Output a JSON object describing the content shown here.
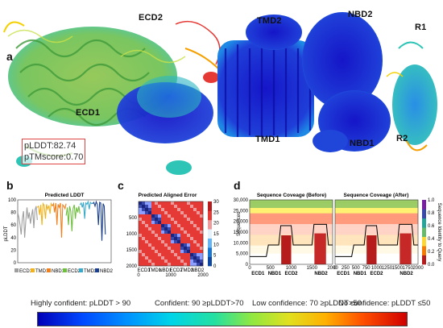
{
  "figure": {
    "panels": {
      "a": "a",
      "b": "b",
      "c": "c",
      "d": "d"
    },
    "structure_labels": {
      "ecd2": "ECD2",
      "tmd2": "TMD2",
      "nbd2": "NBD2",
      "r1": "R1",
      "ecd1": "ECD1",
      "tmd1": "TMD1",
      "nbd1": "NBD1",
      "r2": "R2"
    },
    "metrics": {
      "plddt": "pLDDT:82.74",
      "ptm": "pTMscore:0.70"
    },
    "legend": {
      "high": "Highly confident: pLDDT > 90",
      "confident": "Confident: 90 ≥pLDDT>70",
      "low": "Low confidence: 70 ≥pLDDT>50",
      "none": "No confidence: pLDDT ≤50"
    },
    "colors": {
      "very_high": "#1c1ccf",
      "high": "#1e88e5",
      "mid": "#2ec4b6",
      "low": "#8bc34a",
      "very_low": "#f5d000",
      "red": "#e53935"
    }
  },
  "chart_data": [
    {
      "type": "line",
      "title": "Predicted LDDT",
      "ylabel": "pLDDT",
      "ylim": [
        0,
        100
      ],
      "yticks": [
        "0",
        "20",
        "40",
        "60",
        "80",
        "100"
      ],
      "series": [
        {
          "name": "ECD1",
          "color": "#9e9e9e",
          "values": [
            80,
            72,
            60,
            45,
            70,
            82,
            40,
            66,
            88,
            70,
            80,
            62,
            75,
            85,
            55,
            84,
            90,
            68
          ]
        },
        {
          "name": "TMD1",
          "color": "#f2b21b",
          "values": [
            88,
            90,
            76,
            92,
            60,
            94,
            91,
            70,
            93,
            85,
            91,
            78,
            94,
            90
          ]
        },
        {
          "name": "NBD1",
          "color": "#f07f1e",
          "values": [
            90,
            94,
            80,
            95,
            60,
            93,
            88,
            95,
            40,
            92,
            90,
            86,
            94
          ]
        },
        {
          "name": "ECD2",
          "color": "#6fbf3f",
          "values": [
            75,
            88,
            60,
            90,
            82,
            50,
            86,
            92,
            70,
            88,
            80,
            90,
            78
          ]
        },
        {
          "name": "TMD2",
          "color": "#39a9c9",
          "values": [
            92,
            95,
            88,
            96,
            70,
            95,
            93,
            97,
            85,
            96,
            94,
            95
          ]
        },
        {
          "name": "NBD2",
          "color": "#1a3f8f",
          "values": [
            94,
            96,
            90,
            97,
            93,
            60,
            96,
            95,
            35,
            94,
            90,
            45
          ]
        }
      ]
    },
    {
      "type": "heatmap",
      "title": "Predicted Aligned Error",
      "yticks": [
        "500",
        "1000",
        "1500",
        "2000"
      ],
      "xticks": [
        "0",
        "1000",
        "2000"
      ],
      "xlabels": [
        "ECD1",
        "TMD1",
        "NBD1",
        "ECD2",
        "TMD2",
        "NBD2"
      ],
      "colorbar": [
        "0",
        "5",
        "10",
        "15",
        "20",
        "25",
        "30"
      ]
    },
    {
      "type": "heatmap",
      "titles": [
        "Sequence Coveage (Before)",
        "Sequence Coveage (After)"
      ],
      "ylabel": "Sequences",
      "yticks": [
        "0",
        "5,000",
        "10,000",
        "15,000",
        "20,000",
        "25,000",
        "30,000"
      ],
      "xticks_before": [
        "0",
        "500",
        "1000",
        "1500",
        "2000"
      ],
      "xticks_after": [
        "0",
        "250",
        "500",
        "750",
        "1000",
        "1250",
        "1500",
        "1750",
        "2000"
      ],
      "domain_labels_before": [
        "ECD1",
        "NBD1",
        "ECD2",
        "NBD2"
      ],
      "domain_labels_after": [
        "ECD1",
        "NBD1",
        "ECD2",
        "NBD2"
      ],
      "colorbar_label": "Sequence Identity to Query",
      "colorbar": [
        "0.0",
        "0.2",
        "0.4",
        "0.6",
        "0.8",
        "1.0"
      ]
    }
  ]
}
